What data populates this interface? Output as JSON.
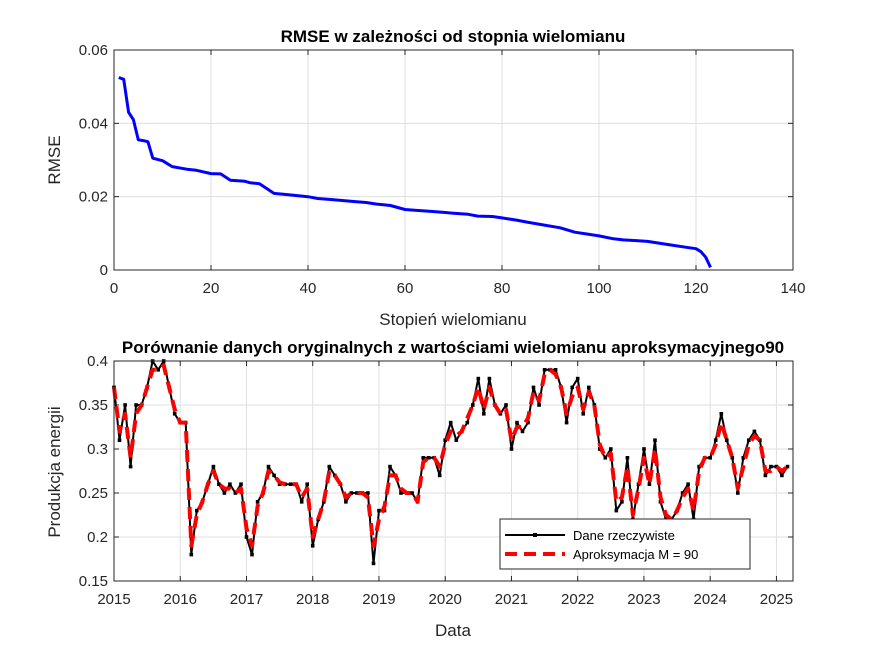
{
  "chart_data": [
    {
      "type": "line",
      "title": "RMSE w zależności od stopnia wielomianu",
      "xlabel": "Stopień wielomianu",
      "ylabel": "RMSE",
      "xlim": [
        0,
        140
      ],
      "ylim": [
        0,
        0.06
      ],
      "xticks": [
        "0",
        "20",
        "40",
        "60",
        "80",
        "100",
        "120",
        "140"
      ],
      "yticks": [
        "0",
        "0.02",
        "0.04",
        "0.06"
      ],
      "grid": true,
      "color": "#0000ff",
      "x": [
        1,
        2,
        3,
        4,
        5,
        6,
        7,
        8,
        10,
        12,
        15,
        17,
        20,
        22,
        24,
        27,
        28,
        30,
        33,
        36,
        40,
        42,
        45,
        50,
        52,
        54,
        57,
        60,
        62,
        65,
        68,
        70,
        73,
        75,
        78,
        80,
        83,
        85,
        88,
        92,
        95,
        98,
        100,
        103,
        105,
        108,
        110,
        113,
        115,
        118,
        120,
        121,
        122,
        123
      ],
      "y": [
        0.0525,
        0.052,
        0.043,
        0.041,
        0.0355,
        0.0353,
        0.035,
        0.0305,
        0.0298,
        0.0282,
        0.0275,
        0.0272,
        0.0263,
        0.0262,
        0.0245,
        0.0242,
        0.0238,
        0.0235,
        0.0209,
        0.0205,
        0.02,
        0.0195,
        0.0192,
        0.0186,
        0.0184,
        0.018,
        0.0176,
        0.0165,
        0.0163,
        0.016,
        0.0157,
        0.0155,
        0.0152,
        0.0147,
        0.0146,
        0.0142,
        0.0136,
        0.0131,
        0.0124,
        0.0115,
        0.0103,
        0.0097,
        0.0093,
        0.0085,
        0.0082,
        0.008,
        0.0078,
        0.0072,
        0.0068,
        0.0062,
        0.0058,
        0.005,
        0.0035,
        0.0007
      ]
    },
    {
      "type": "line",
      "title": "Porównanie danych oryginalnych z wartościami wielomianu aproksymacyjnego90",
      "xlabel": "Data",
      "ylabel": "Produkcja energii",
      "xlim": [
        2015,
        2025.25
      ],
      "ylim": [
        0.15,
        0.4
      ],
      "xticks": [
        "2015",
        "2016",
        "2017",
        "2018",
        "2019",
        "2020",
        "2021",
        "2022",
        "2023",
        "2024",
        "2025"
      ],
      "yticks": [
        "0.15",
        "0.2",
        "0.25",
        "0.3",
        "0.35",
        "0.4"
      ],
      "grid": true,
      "legend_position": "bottom-right",
      "series": [
        {
          "name": "Dane rzeczywiste",
          "color": "#000000",
          "style": "solid-with-point-markers",
          "x": [
            2015.0,
            2015.083,
            2015.167,
            2015.25,
            2015.333,
            2015.417,
            2015.5,
            2015.583,
            2015.667,
            2015.75,
            2015.833,
            2015.917,
            2016.0,
            2016.083,
            2016.167,
            2016.25,
            2016.333,
            2016.417,
            2016.5,
            2016.583,
            2016.667,
            2016.75,
            2016.833,
            2016.917,
            2017.0,
            2017.083,
            2017.167,
            2017.25,
            2017.333,
            2017.417,
            2017.5,
            2017.583,
            2017.667,
            2017.75,
            2017.833,
            2017.917,
            2018.0,
            2018.083,
            2018.167,
            2018.25,
            2018.333,
            2018.417,
            2018.5,
            2018.583,
            2018.667,
            2018.75,
            2018.833,
            2018.917,
            2019.0,
            2019.083,
            2019.167,
            2019.25,
            2019.333,
            2019.417,
            2019.5,
            2019.583,
            2019.667,
            2019.75,
            2019.833,
            2019.917,
            2020.0,
            2020.083,
            2020.167,
            2020.25,
            2020.333,
            2020.417,
            2020.5,
            2020.583,
            2020.667,
            2020.75,
            2020.833,
            2020.917,
            2021.0,
            2021.083,
            2021.167,
            2021.25,
            2021.333,
            2021.417,
            2021.5,
            2021.583,
            2021.667,
            2021.75,
            2021.833,
            2021.917,
            2022.0,
            2022.083,
            2022.167,
            2022.25,
            2022.333,
            2022.417,
            2022.5,
            2022.583,
            2022.667,
            2022.75,
            2022.833,
            2022.917,
            2023.0,
            2023.083,
            2023.167,
            2023.25,
            2023.333,
            2023.417,
            2023.5,
            2023.583,
            2023.667,
            2023.75,
            2023.833,
            2023.917,
            2024.0,
            2024.083,
            2024.167,
            2024.25,
            2024.333,
            2024.417,
            2024.5,
            2024.583,
            2024.667,
            2024.75,
            2024.833,
            2024.917,
            2025.0,
            2025.083,
            2025.167
          ],
          "y": [
            0.37,
            0.31,
            0.35,
            0.28,
            0.35,
            0.35,
            0.37,
            0.4,
            0.39,
            0.4,
            0.37,
            0.34,
            0.33,
            0.33,
            0.18,
            0.23,
            0.24,
            0.26,
            0.28,
            0.26,
            0.25,
            0.26,
            0.25,
            0.26,
            0.2,
            0.18,
            0.24,
            0.25,
            0.28,
            0.27,
            0.26,
            0.26,
            0.26,
            0.26,
            0.24,
            0.26,
            0.19,
            0.22,
            0.24,
            0.28,
            0.27,
            0.26,
            0.24,
            0.25,
            0.25,
            0.25,
            0.25,
            0.17,
            0.23,
            0.23,
            0.28,
            0.27,
            0.25,
            0.25,
            0.25,
            0.24,
            0.29,
            0.29,
            0.29,
            0.27,
            0.31,
            0.33,
            0.31,
            0.32,
            0.33,
            0.35,
            0.38,
            0.34,
            0.38,
            0.35,
            0.34,
            0.35,
            0.3,
            0.33,
            0.32,
            0.33,
            0.37,
            0.35,
            0.39,
            0.39,
            0.39,
            0.37,
            0.33,
            0.37,
            0.38,
            0.34,
            0.37,
            0.35,
            0.3,
            0.29,
            0.3,
            0.23,
            0.24,
            0.29,
            0.22,
            0.26,
            0.3,
            0.26,
            0.31,
            0.24,
            0.22,
            0.22,
            0.23,
            0.25,
            0.26,
            0.22,
            0.28,
            0.29,
            0.29,
            0.31,
            0.34,
            0.31,
            0.29,
            0.25,
            0.29,
            0.31,
            0.32,
            0.31,
            0.27,
            0.28,
            0.28,
            0.27,
            0.28
          ]
        },
        {
          "name": "Aproksymacja M = 90",
          "color": "#ff0000",
          "style": "dashed",
          "x": [
            2015.0,
            2015.083,
            2015.167,
            2015.25,
            2015.333,
            2015.417,
            2015.5,
            2015.583,
            2015.667,
            2015.75,
            2015.833,
            2015.917,
            2016.0,
            2016.083,
            2016.167,
            2016.25,
            2016.333,
            2016.417,
            2016.5,
            2016.583,
            2016.667,
            2016.75,
            2016.833,
            2016.917,
            2017.0,
            2017.083,
            2017.167,
            2017.25,
            2017.333,
            2017.417,
            2017.5,
            2017.583,
            2017.667,
            2017.75,
            2017.833,
            2017.917,
            2018.0,
            2018.083,
            2018.167,
            2018.25,
            2018.333,
            2018.417,
            2018.5,
            2018.583,
            2018.667,
            2018.75,
            2018.833,
            2018.917,
            2019.0,
            2019.083,
            2019.167,
            2019.25,
            2019.333,
            2019.417,
            2019.5,
            2019.583,
            2019.667,
            2019.75,
            2019.833,
            2019.917,
            2020.0,
            2020.083,
            2020.167,
            2020.25,
            2020.333,
            2020.417,
            2020.5,
            2020.583,
            2020.667,
            2020.75,
            2020.833,
            2020.917,
            2021.0,
            2021.083,
            2021.167,
            2021.25,
            2021.333,
            2021.417,
            2021.5,
            2021.583,
            2021.667,
            2021.75,
            2021.833,
            2021.917,
            2022.0,
            2022.083,
            2022.167,
            2022.25,
            2022.333,
            2022.417,
            2022.5,
            2022.583,
            2022.667,
            2022.75,
            2022.833,
            2022.917,
            2023.0,
            2023.083,
            2023.167,
            2023.25,
            2023.333,
            2023.417,
            2023.5,
            2023.583,
            2023.667,
            2023.75,
            2023.833,
            2023.917,
            2024.0,
            2024.083,
            2024.167,
            2024.25,
            2024.333,
            2024.417,
            2024.5,
            2024.583,
            2024.667,
            2024.75,
            2024.833,
            2024.917,
            2025.0,
            2025.083,
            2025.167
          ],
          "y": [
            0.37,
            0.32,
            0.34,
            0.29,
            0.34,
            0.35,
            0.37,
            0.39,
            0.39,
            0.395,
            0.37,
            0.345,
            0.33,
            0.33,
            0.19,
            0.225,
            0.24,
            0.26,
            0.275,
            0.26,
            0.255,
            0.255,
            0.25,
            0.255,
            0.21,
            0.19,
            0.235,
            0.25,
            0.275,
            0.27,
            0.262,
            0.26,
            0.26,
            0.26,
            0.245,
            0.255,
            0.2,
            0.22,
            0.24,
            0.275,
            0.27,
            0.26,
            0.245,
            0.25,
            0.25,
            0.25,
            0.245,
            0.19,
            0.22,
            0.235,
            0.27,
            0.27,
            0.255,
            0.25,
            0.25,
            0.24,
            0.285,
            0.29,
            0.29,
            0.28,
            0.305,
            0.32,
            0.315,
            0.32,
            0.335,
            0.35,
            0.37,
            0.345,
            0.37,
            0.35,
            0.34,
            0.345,
            0.31,
            0.325,
            0.325,
            0.335,
            0.365,
            0.355,
            0.385,
            0.39,
            0.385,
            0.37,
            0.34,
            0.36,
            0.37,
            0.345,
            0.365,
            0.35,
            0.305,
            0.29,
            0.295,
            0.24,
            0.245,
            0.28,
            0.225,
            0.255,
            0.29,
            0.26,
            0.3,
            0.245,
            0.225,
            0.22,
            0.23,
            0.245,
            0.255,
            0.23,
            0.275,
            0.29,
            0.29,
            0.305,
            0.33,
            0.31,
            0.29,
            0.255,
            0.28,
            0.305,
            0.315,
            0.31,
            0.275,
            0.275,
            0.28,
            0.275,
            0.28
          ]
        }
      ]
    }
  ]
}
